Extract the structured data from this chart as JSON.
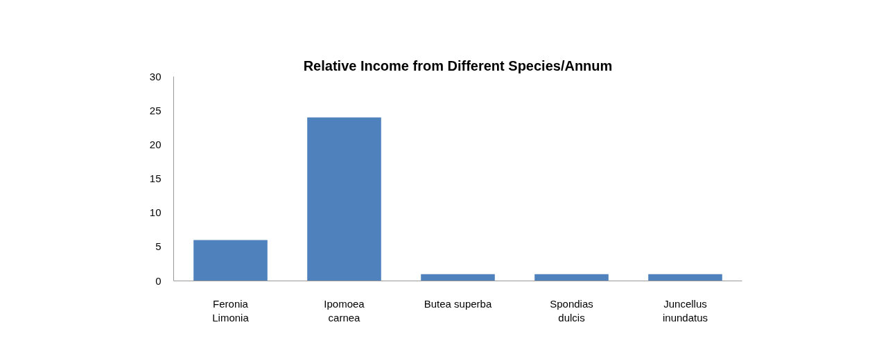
{
  "chart_data": {
    "type": "bar",
    "title": "Relative Income from Different Species/Annum",
    "categories": [
      "Feronia Limonia",
      "Ipomoea carnea",
      "Butea superba",
      "Spondias dulcis",
      "Juncellus inundatus"
    ],
    "values": [
      6,
      24,
      1,
      1,
      1
    ],
    "color": "#4f81bd",
    "ylim": [
      0,
      30
    ],
    "yticks": [
      0,
      5,
      10,
      15,
      20,
      25,
      30
    ],
    "grid": false
  }
}
